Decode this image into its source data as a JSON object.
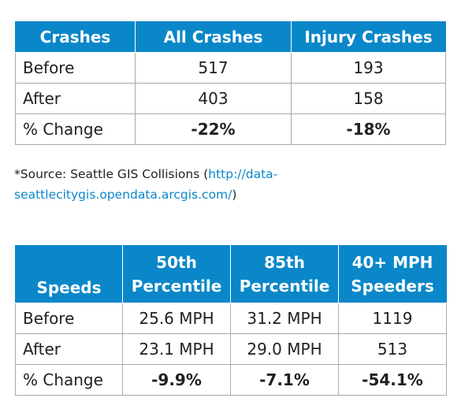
{
  "crashes_table": {
    "headers": [
      "Crashes",
      "All Crashes",
      "Injury Crashes"
    ],
    "rows": [
      {
        "label": "Before",
        "all": "517",
        "injury": "193"
      },
      {
        "label": "After",
        "all": "403",
        "injury": "158"
      },
      {
        "label": "% Change",
        "all": "-22%",
        "injury": "-18%"
      }
    ]
  },
  "source": {
    "prefix": "*Source: Seattle GIS Collisions (",
    "link": "http://data-seattlecitygis.opendata.arcgis.com/",
    "suffix": ")"
  },
  "speeds_table": {
    "headers": [
      "Speeds",
      "50th Percentile",
      "85th Percentile",
      "40+ MPH Speeders"
    ],
    "rows": [
      {
        "label": "Before",
        "p50": "25.6 MPH",
        "p85": "31.2 MPH",
        "speeders": "1119"
      },
      {
        "label": "After",
        "p50": "23.1 MPH",
        "p85": "29.0 MPH",
        "speeders": "513"
      },
      {
        "label": "% Change",
        "p50": "-9.9%",
        "p85": "-7.1%",
        "speeders": "-54.1%"
      }
    ]
  },
  "colors": {
    "header_bg": "#0a87c9",
    "border": "#a7a9ac",
    "link": "#0a87c9"
  }
}
